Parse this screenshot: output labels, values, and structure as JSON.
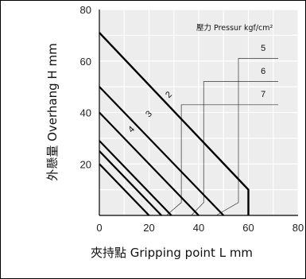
{
  "chart_data": {
    "type": "line",
    "xlabel": "夾持點 Gripping point L mm",
    "ylabel": "外懸量 Overhang H mm",
    "xlim": [
      0,
      80
    ],
    "ylim": [
      0,
      80
    ],
    "x_ticks": [
      "0",
      "20",
      "40",
      "60",
      "80"
    ],
    "y_ticks": [
      "20",
      "40",
      "60",
      "80"
    ],
    "grid": true,
    "legend_title": "壓力 Pressur kgf/cm²",
    "series": [
      {
        "name": "2",
        "x": [
          0,
          60,
          60
        ],
        "y": [
          71,
          10,
          0
        ]
      },
      {
        "name": "3",
        "x": [
          0,
          50
        ],
        "y": [
          50,
          0
        ]
      },
      {
        "name": "4",
        "x": [
          0,
          40
        ],
        "y": [
          40,
          0
        ]
      },
      {
        "name": "5",
        "x": [
          0,
          29
        ],
        "y": [
          29,
          0
        ]
      },
      {
        "name": "6",
        "x": [
          0,
          25
        ],
        "y": [
          25,
          0
        ]
      },
      {
        "name": "7",
        "x": [
          0,
          20
        ],
        "y": [
          20,
          0
        ]
      }
    ],
    "curve_labels": [
      {
        "text": "2",
        "x": 28,
        "y": 45.5
      },
      {
        "text": "3",
        "x": 20,
        "y": 38
      },
      {
        "text": "4",
        "x": 13,
        "y": 32
      },
      {
        "text": "5",
        "x": 65,
        "y": 64
      },
      {
        "text": "6",
        "x": 65,
        "y": 55
      },
      {
        "text": "7",
        "x": 65,
        "y": 46
      }
    ]
  }
}
